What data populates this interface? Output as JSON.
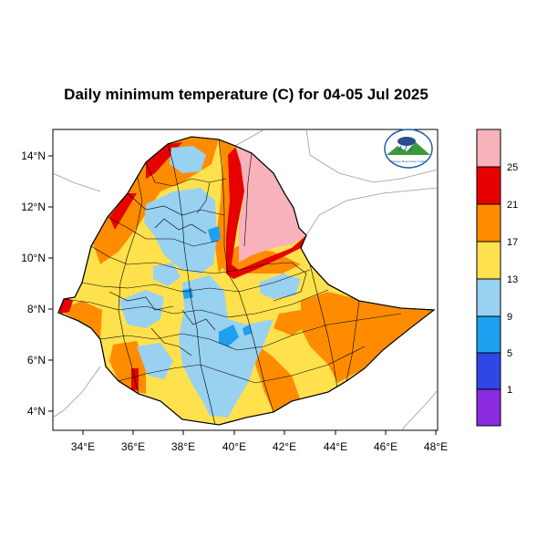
{
  "title": "Daily minimum temperature (C) for 04-05 Jul 2025",
  "axes": {
    "lon_ticks": [
      "34°E",
      "36°E",
      "38°E",
      "40°E",
      "42°E",
      "44°E",
      "46°E",
      "48°E"
    ],
    "lat_ticks": [
      "14°N",
      "12°N",
      "10°N",
      "8°N",
      "6°N",
      "4°N"
    ],
    "lon_range": [
      32.8,
      48.2
    ],
    "lat_range": [
      3.2,
      15.0
    ]
  },
  "legend": {
    "bands": [
      {
        "label": "",
        "color": "#f7b2bc"
      },
      {
        "label": "25",
        "color": "#e60000"
      },
      {
        "label": "21",
        "color": "#ff8c00"
      },
      {
        "label": "17",
        "color": "#ffe14d"
      },
      {
        "label": "13",
        "color": "#99d1f0"
      },
      {
        "label": "9",
        "color": "#1ea0f0"
      },
      {
        "label": "5",
        "color": "#2e47e6"
      },
      {
        "label": "1",
        "color": "#8a2be2"
      }
    ],
    "placement": "right"
  },
  "logo": {
    "text": "Ethiopian Meteorology Institute",
    "icon": "ethiopian-meteorology-institute-logo"
  }
}
